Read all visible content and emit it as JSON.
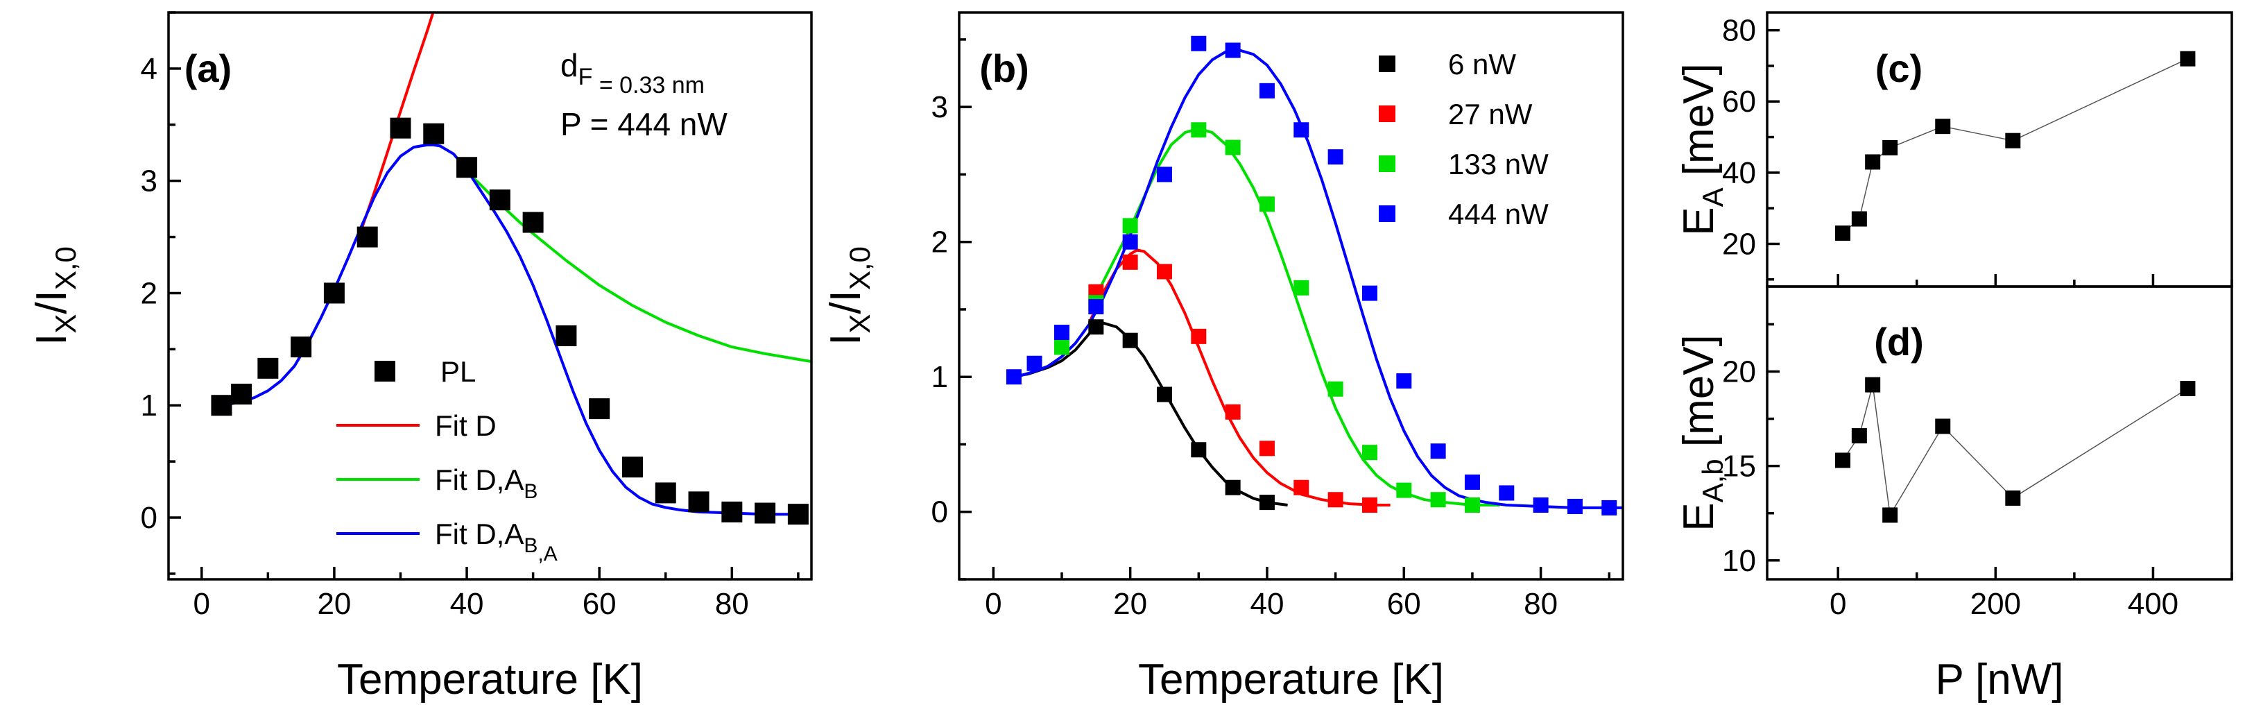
{
  "chart_data": [
    {
      "panel": "(a)",
      "type": "scatter",
      "xlabel": "Temperature [K]",
      "ylabel": {
        "main": "I",
        "sub1": "X",
        "mid": "/I",
        "sub2": "X,0"
      },
      "xlim": [
        -5,
        92
      ],
      "ylim": [
        -0.55,
        4.5
      ],
      "xticks": [
        0,
        20,
        40,
        60,
        80
      ],
      "yticks": [
        0,
        1,
        2,
        3,
        4
      ],
      "annotations": [
        {
          "main": "d",
          "sub": "F",
          "rest": " = 0.33 nm"
        },
        {
          "main": "P = 444 nW",
          "sub": "",
          "rest": ""
        }
      ],
      "legend": {
        "position": "lower-center",
        "entries": [
          {
            "key": "pl",
            "label": "PL",
            "sub": "",
            "tail": "",
            "kind": "marker",
            "color": "#000000"
          },
          {
            "key": "fitD",
            "label": "Fit D",
            "sub": "",
            "tail": "",
            "kind": "line",
            "color": "#ff0000"
          },
          {
            "key": "fitDAB",
            "label": "Fit D,A",
            "sub": "B",
            "tail": "",
            "kind": "line",
            "color": "#00e000"
          },
          {
            "key": "fitDABA",
            "label": "Fit D,A",
            "sub": "B",
            "tail": ",A",
            "kind": "line",
            "color": "#0000ff"
          }
        ]
      },
      "series": [
        {
          "key": "pl",
          "type": "scatter",
          "color": "#000000",
          "x": [
            3,
            6,
            10,
            15,
            20,
            25,
            30,
            35,
            40,
            45,
            50,
            55,
            60,
            65,
            70,
            75,
            80,
            85,
            90
          ],
          "y": [
            1.0,
            1.1,
            1.33,
            1.52,
            2.0,
            2.5,
            3.47,
            3.42,
            3.12,
            2.83,
            2.63,
            1.62,
            0.97,
            0.45,
            0.22,
            0.14,
            0.05,
            0.04,
            0.03
          ]
        },
        {
          "key": "fitD",
          "type": "line",
          "color": "#ff0000",
          "x": [
            24,
            26,
            28,
            30,
            32,
            34,
            36,
            38
          ],
          "y": [
            2.55,
            2.89,
            3.25,
            3.62,
            3.98,
            4.33,
            4.7,
            5.05
          ]
        },
        {
          "key": "fitDAB",
          "type": "line",
          "color": "#00e000",
          "x": [
            40,
            42,
            44,
            46,
            48,
            50,
            55,
            60,
            65,
            70,
            75,
            80,
            85,
            92
          ],
          "y": [
            3.08,
            2.97,
            2.85,
            2.74,
            2.63,
            2.53,
            2.29,
            2.07,
            1.89,
            1.74,
            1.62,
            1.52,
            1.46,
            1.39
          ]
        },
        {
          "key": "fitDABA",
          "type": "line",
          "color": "#0000ff",
          "x": [
            2,
            4,
            6,
            8,
            10,
            12,
            14,
            16,
            18,
            20,
            22,
            24,
            26,
            28,
            30,
            32,
            34,
            35,
            36,
            38,
            40,
            42,
            44,
            46,
            48,
            50,
            52,
            54,
            56,
            58,
            60,
            62,
            64,
            66,
            68,
            70,
            72,
            75,
            80,
            85,
            90
          ],
          "y": [
            1.0,
            1.01,
            1.03,
            1.07,
            1.13,
            1.22,
            1.35,
            1.55,
            1.78,
            2.03,
            2.3,
            2.58,
            2.85,
            3.07,
            3.22,
            3.3,
            3.32,
            3.32,
            3.31,
            3.24,
            3.1,
            2.92,
            2.74,
            2.55,
            2.33,
            2.07,
            1.77,
            1.45,
            1.13,
            0.84,
            0.6,
            0.41,
            0.27,
            0.18,
            0.12,
            0.09,
            0.07,
            0.05,
            0.04,
            0.03,
            0.03
          ]
        }
      ]
    },
    {
      "panel": "(b)",
      "type": "scatter",
      "xlabel": "Temperature [K]",
      "ylabel": {
        "main": "I",
        "sub1": "X",
        "mid": "/I",
        "sub2": "X,0"
      },
      "xlim": [
        -5,
        92
      ],
      "ylim": [
        -0.5,
        3.7
      ],
      "xticks": [
        0,
        20,
        40,
        60,
        80
      ],
      "yticks": [
        0,
        1,
        2,
        3
      ],
      "legend": {
        "position": "top-right",
        "entries": [
          {
            "key": "p6",
            "label": "6 nW",
            "sub": "",
            "tail": "",
            "kind": "marker",
            "color": "#000000"
          },
          {
            "key": "p27",
            "label": "27 nW",
            "sub": "",
            "tail": "",
            "kind": "marker",
            "color": "#ff0000"
          },
          {
            "key": "p133",
            "label": "133 nW",
            "sub": "",
            "tail": "",
            "kind": "marker",
            "color": "#00e000"
          },
          {
            "key": "p444",
            "label": "444 nW",
            "sub": "",
            "tail": "",
            "kind": "marker",
            "color": "#0000ff"
          }
        ]
      },
      "series": [
        {
          "key": "p6",
          "type": "scatter",
          "color": "#000000",
          "x": [
            15,
            20,
            25,
            30,
            35,
            40
          ],
          "y": [
            1.37,
            1.27,
            0.87,
            0.46,
            0.18,
            0.07
          ]
        },
        {
          "key": "p27",
          "type": "scatter",
          "color": "#ff0000",
          "x": [
            15,
            20,
            25,
            30,
            35,
            40,
            45,
            50,
            55
          ],
          "y": [
            1.63,
            1.85,
            1.78,
            1.3,
            0.74,
            0.47,
            0.18,
            0.09,
            0.05
          ]
        },
        {
          "key": "p133",
          "type": "scatter",
          "color": "#00e000",
          "x": [
            10,
            15,
            20,
            25,
            30,
            35,
            40,
            45,
            50,
            55,
            60,
            65,
            70
          ],
          "y": [
            1.22,
            1.55,
            2.12,
            2.5,
            2.83,
            2.7,
            2.28,
            1.66,
            0.91,
            0.44,
            0.16,
            0.09,
            0.05
          ]
        },
        {
          "key": "p444",
          "type": "scatter",
          "color": "#0000ff",
          "x": [
            3,
            6,
            10,
            15,
            20,
            25,
            30,
            35,
            40,
            45,
            50,
            55,
            60,
            65,
            70,
            75,
            80,
            85,
            90
          ],
          "y": [
            1.0,
            1.1,
            1.33,
            1.52,
            2.0,
            2.5,
            3.47,
            3.42,
            3.12,
            2.83,
            2.63,
            1.62,
            0.97,
            0.45,
            0.22,
            0.14,
            0.05,
            0.04,
            0.03
          ]
        },
        {
          "key": "f6",
          "type": "line",
          "color": "#000000",
          "x": [
            2,
            5,
            8,
            10,
            12,
            14,
            15,
            16,
            18,
            20,
            22,
            24,
            26,
            28,
            30,
            32,
            34,
            36,
            38,
            40,
            43
          ],
          "y": [
            1.0,
            1.02,
            1.07,
            1.12,
            1.2,
            1.32,
            1.38,
            1.4,
            1.37,
            1.28,
            1.15,
            0.98,
            0.8,
            0.62,
            0.46,
            0.33,
            0.22,
            0.15,
            0.1,
            0.07,
            0.05
          ]
        },
        {
          "key": "f27",
          "type": "line",
          "color": "#ff0000",
          "x": [
            14,
            16,
            18,
            20,
            21,
            22,
            24,
            26,
            28,
            30,
            32,
            34,
            36,
            38,
            40,
            42,
            45,
            48,
            52,
            56,
            58
          ],
          "y": [
            1.4,
            1.62,
            1.8,
            1.91,
            1.94,
            1.93,
            1.84,
            1.68,
            1.47,
            1.22,
            0.97,
            0.74,
            0.55,
            0.4,
            0.29,
            0.21,
            0.13,
            0.09,
            0.06,
            0.05,
            0.05
          ]
        },
        {
          "key": "f133",
          "type": "line",
          "color": "#00e000",
          "x": [
            15,
            18,
            20,
            22,
            24,
            26,
            28,
            30,
            32,
            34,
            36,
            38,
            40,
            42,
            44,
            46,
            48,
            50,
            52,
            54,
            56,
            58,
            60,
            63,
            66,
            70,
            74
          ],
          "y": [
            1.6,
            1.9,
            2.1,
            2.33,
            2.55,
            2.72,
            2.81,
            2.84,
            2.81,
            2.72,
            2.58,
            2.4,
            2.18,
            1.91,
            1.62,
            1.32,
            1.03,
            0.77,
            0.56,
            0.39,
            0.27,
            0.19,
            0.14,
            0.09,
            0.07,
            0.05,
            0.05
          ]
        },
        {
          "key": "f444",
          "type": "line",
          "color": "#0000ff",
          "x": [
            2,
            4,
            6,
            8,
            10,
            12,
            14,
            16,
            18,
            20,
            22,
            24,
            26,
            28,
            30,
            32,
            34,
            36,
            38,
            40,
            42,
            44,
            46,
            48,
            50,
            52,
            54,
            56,
            58,
            60,
            62,
            64,
            66,
            68,
            70,
            72,
            75,
            80,
            85,
            90,
            92
          ],
          "y": [
            1.0,
            1.01,
            1.04,
            1.08,
            1.15,
            1.25,
            1.39,
            1.58,
            1.8,
            2.05,
            2.32,
            2.6,
            2.85,
            3.07,
            3.24,
            3.35,
            3.41,
            3.42,
            3.39,
            3.31,
            3.17,
            2.98,
            2.74,
            2.46,
            2.14,
            1.8,
            1.46,
            1.13,
            0.84,
            0.6,
            0.41,
            0.27,
            0.18,
            0.12,
            0.09,
            0.07,
            0.05,
            0.04,
            0.03,
            0.03,
            0.03
          ]
        }
      ]
    },
    {
      "panel": "(c)",
      "type": "line",
      "ylabel": {
        "main": "E",
        "sub": "A",
        "rest": " [meV]"
      },
      "xlim": [
        -90,
        500
      ],
      "ylim": [
        8,
        85
      ],
      "yticks": [
        20,
        40,
        60,
        80
      ],
      "series": [
        {
          "key": "EA",
          "color": "#000000",
          "x": [
            6,
            27,
            44,
            66,
            133,
            222,
            444
          ],
          "y": [
            23,
            27,
            43,
            47,
            53,
            49,
            72
          ]
        }
      ]
    },
    {
      "panel": "(d)",
      "type": "line",
      "xlabel": "P [nW]",
      "ylabel": {
        "main": "E",
        "sub": "A,b",
        "rest": " [meV]"
      },
      "xlim": [
        -90,
        500
      ],
      "ylim": [
        9,
        24.5
      ],
      "xticks": [
        0,
        200,
        400
      ],
      "yticks": [
        10,
        15,
        20
      ],
      "series": [
        {
          "key": "EAb",
          "color": "#000000",
          "x": [
            6,
            27,
            44,
            66,
            133,
            222,
            444
          ],
          "y": [
            15.3,
            16.6,
            19.3,
            12.4,
            17.1,
            13.3,
            19.1
          ]
        }
      ]
    }
  ]
}
